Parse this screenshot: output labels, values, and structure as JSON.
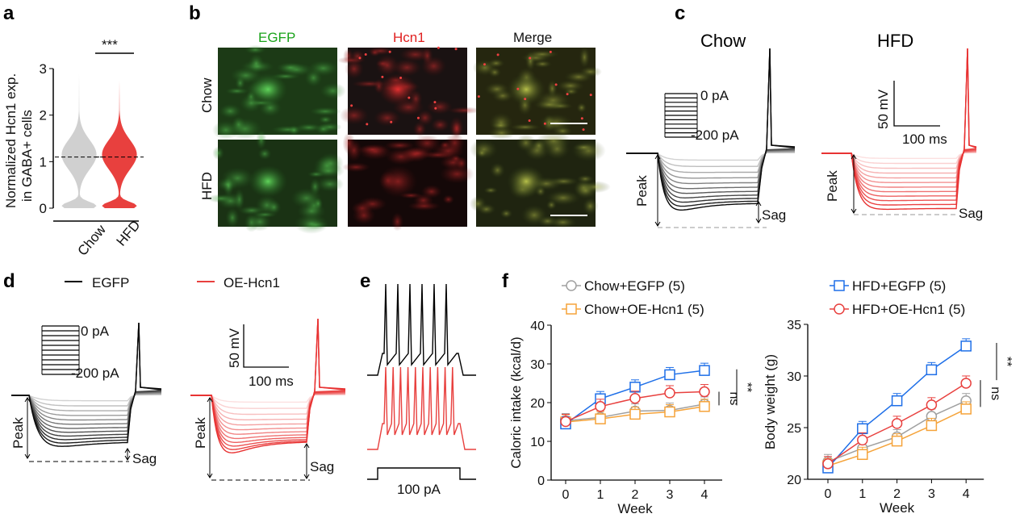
{
  "panels": {
    "a": {
      "label": "a",
      "ylabel_line1": "Normalized Hcn1 exp.",
      "ylabel_line2": "in GABA+ cells",
      "sig": "***",
      "yticks": [
        "0",
        "1",
        "2",
        "3"
      ],
      "groups": [
        "Chow",
        "HFD"
      ],
      "colors": {
        "Chow": "#d0d0d0",
        "HFD": "#e8403e"
      }
    },
    "b": {
      "label": "b",
      "columns": [
        "EGFP",
        "Hcn1",
        "Merge"
      ],
      "rows": [
        "Chow",
        "HFD"
      ],
      "column_colors": [
        "#1aa31a",
        "#e02020",
        "#111111"
      ]
    },
    "c": {
      "label": "c",
      "titles": [
        "Chow",
        "HFD"
      ],
      "step_top": "0 pA",
      "step_bottom": "-200 pA",
      "peak": "Peak",
      "sag": "Sag",
      "scale_v": "50 mV",
      "scale_t": "100 ms"
    },
    "d": {
      "label": "d",
      "legend": [
        "EGFP",
        "OE-Hcn1"
      ],
      "step_top": "0 pA",
      "step_bottom": "-200 pA",
      "peak": "Peak",
      "sag": "Sag",
      "scale_v": "50 mV",
      "scale_t": "100 ms"
    },
    "e": {
      "label": "e",
      "stim": "100 pA"
    },
    "f": {
      "label": "f",
      "ns": "ns",
      "sig": "**"
    }
  },
  "chart_data": [
    {
      "type": "line",
      "xlabel": "Week",
      "ylabel": "Caloric intake (kcal/d)",
      "x": [
        0,
        1,
        2,
        3,
        4
      ],
      "ylim": [
        0,
        40
      ],
      "yticks": [
        0,
        10,
        20,
        30,
        40
      ],
      "series": [
        {
          "name": "Chow+EGFP (5)",
          "color": "#a0a0a0",
          "marker": "circle",
          "values": [
            15.3,
            16.2,
            17.8,
            18.0,
            19.6
          ]
        },
        {
          "name": "Chow+OE-Hcn1 (5)",
          "color": "#f5a33a",
          "marker": "square",
          "values": [
            15.0,
            15.8,
            17.0,
            17.6,
            19.0
          ]
        },
        {
          "name": "HFD+EGFP (5)",
          "color": "#1e6fe8",
          "marker": "square",
          "values": [
            14.5,
            21.0,
            24.0,
            27.2,
            28.3
          ]
        },
        {
          "name": "HFD+OE-Hcn1 (5)",
          "color": "#e8403e",
          "marker": "circle",
          "values": [
            15.1,
            19.0,
            21.1,
            22.5,
            22.8
          ]
        }
      ]
    },
    {
      "type": "line",
      "xlabel": "Week",
      "ylabel": "Body weight (g)",
      "x": [
        0,
        1,
        2,
        3,
        4
      ],
      "ylim": [
        20,
        35
      ],
      "yticks": [
        20,
        25,
        30,
        35
      ],
      "series": [
        {
          "name": "Chow+EGFP (5)",
          "color": "#a0a0a0",
          "marker": "circle",
          "values": [
            21.7,
            23.0,
            24.1,
            26.1,
            27.6
          ]
        },
        {
          "name": "Chow+OE-Hcn1 (5)",
          "color": "#f5a33a",
          "marker": "square",
          "values": [
            21.3,
            22.4,
            23.7,
            25.2,
            26.8
          ]
        },
        {
          "name": "HFD+EGFP (5)",
          "color": "#1e6fe8",
          "marker": "square",
          "values": [
            21.1,
            24.9,
            27.6,
            30.6,
            32.9
          ]
        },
        {
          "name": "HFD+OE-Hcn1 (5)",
          "color": "#e8403e",
          "marker": "circle",
          "values": [
            21.5,
            23.8,
            25.4,
            27.2,
            29.3
          ]
        }
      ]
    }
  ]
}
